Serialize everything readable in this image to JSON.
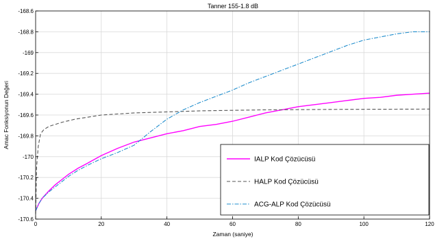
{
  "chart_data": {
    "type": "line",
    "title": "Tanner 155-1.8 dB",
    "xlabel": "Zaman (saniye)",
    "ylabel": "Amac Fonksiyonun Değeri",
    "xlim": [
      0,
      120
    ],
    "ylim": [
      -170.6,
      -168.6
    ],
    "xticks": [
      "0",
      "20",
      "40",
      "60",
      "80",
      "100",
      "120"
    ],
    "yticks": [
      "-168.6",
      "-168.8",
      "-169",
      "-169.2",
      "-169.4",
      "-169.6",
      "-169.8",
      "-170",
      "-170.2",
      "-170.4",
      "-170.6"
    ],
    "grid": true,
    "legend_position": "lower-right",
    "series": [
      {
        "name": "IALP Kod Çözücüsü",
        "color": "#ff00ff",
        "style": "solid",
        "x": [
          0,
          1,
          2,
          4,
          6,
          8,
          10,
          13,
          16,
          20,
          25,
          30,
          35,
          40,
          45,
          50,
          55,
          60,
          65,
          70,
          75,
          80,
          85,
          90,
          95,
          100,
          105,
          110,
          115,
          120
        ],
        "y": [
          -170.52,
          -170.45,
          -170.4,
          -170.33,
          -170.27,
          -170.22,
          -170.17,
          -170.11,
          -170.06,
          -169.99,
          -169.92,
          -169.86,
          -169.82,
          -169.78,
          -169.75,
          -169.71,
          -169.69,
          -169.66,
          -169.62,
          -169.58,
          -169.55,
          -169.52,
          -169.5,
          -169.48,
          -169.46,
          -169.44,
          -169.43,
          -169.41,
          -169.4,
          -169.39
        ]
      },
      {
        "name": "HALP Kod Çözücüsü",
        "color": "#555555",
        "style": "dashed",
        "x": [
          0,
          0.3,
          0.8,
          1.5,
          2.5,
          4,
          6,
          8,
          12,
          16,
          20,
          25,
          30,
          40,
          50,
          60,
          70,
          80,
          90,
          100,
          110,
          120
        ],
        "y": [
          -170.55,
          -170.1,
          -169.9,
          -169.78,
          -169.74,
          -169.71,
          -169.69,
          -169.67,
          -169.64,
          -169.62,
          -169.6,
          -169.59,
          -169.58,
          -169.57,
          -169.56,
          -169.555,
          -169.55,
          -169.548,
          -169.546,
          -169.545,
          -169.544,
          -169.543
        ]
      },
      {
        "name": "ACG-ALP Kod Çözücüsü",
        "color": "#1e8ccc",
        "style": "dashdot",
        "x": [
          0,
          1,
          2,
          4,
          6,
          8,
          10,
          13,
          16,
          20,
          25,
          30,
          35,
          40,
          45,
          50,
          55,
          60,
          65,
          70,
          75,
          80,
          85,
          90,
          95,
          100,
          105,
          110,
          115,
          120
        ],
        "y": [
          -170.52,
          -170.45,
          -170.4,
          -170.34,
          -170.29,
          -170.24,
          -170.19,
          -170.13,
          -170.08,
          -170.02,
          -169.96,
          -169.89,
          -169.76,
          -169.64,
          -169.55,
          -169.48,
          -169.42,
          -169.36,
          -169.29,
          -169.23,
          -169.17,
          -169.11,
          -169.05,
          -168.99,
          -168.93,
          -168.88,
          -168.85,
          -168.82,
          -168.8,
          -168.8
        ]
      }
    ]
  }
}
